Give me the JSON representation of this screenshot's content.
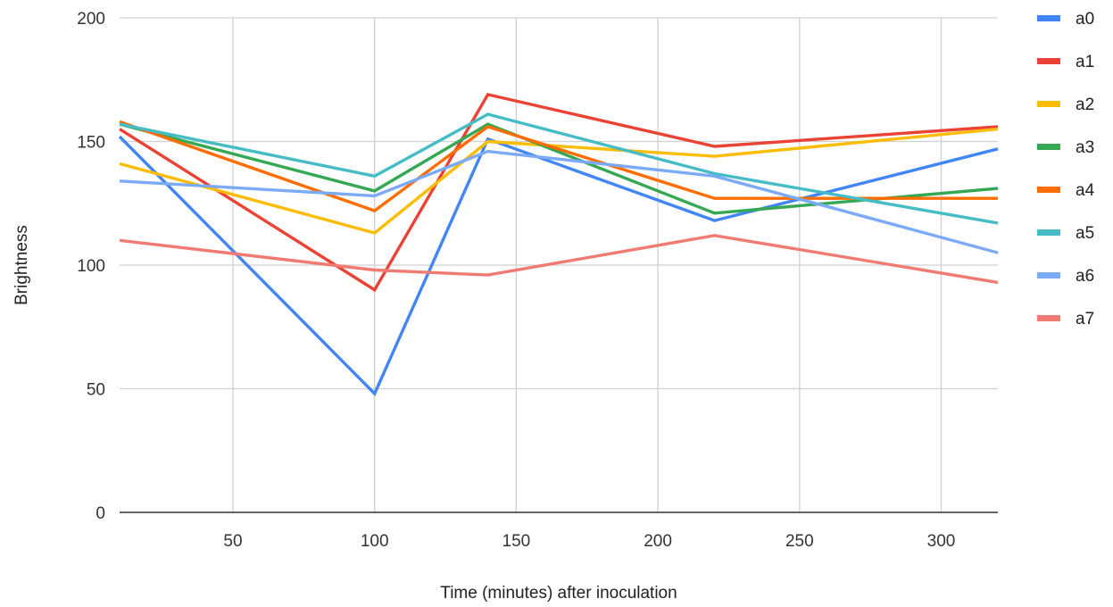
{
  "chart_data": {
    "type": "line",
    "title": "",
    "xlabel": "Time (minutes) after inoculation",
    "ylabel": "Brightness",
    "xlim": [
      10,
      320
    ],
    "ylim": [
      0,
      200
    ],
    "x_ticks": [
      50,
      100,
      150,
      200,
      250,
      300
    ],
    "y_ticks": [
      0,
      50,
      100,
      150,
      200
    ],
    "grid": true,
    "legend_position": "right",
    "x": [
      10,
      100,
      140,
      220,
      320
    ],
    "series": [
      {
        "name": "a0",
        "color": "#4285f4",
        "values": [
          152,
          48,
          151,
          118,
          147
        ]
      },
      {
        "name": "a1",
        "color": "#ea4335",
        "values": [
          155,
          90,
          169,
          148,
          156
        ]
      },
      {
        "name": "a2",
        "color": "#fbbc04",
        "values": [
          141,
          113,
          150,
          144,
          155
        ]
      },
      {
        "name": "a3",
        "color": "#34a853",
        "values": [
          157,
          130,
          157,
          121,
          131
        ]
      },
      {
        "name": "a4",
        "color": "#ff6d01",
        "values": [
          158,
          122,
          156,
          127,
          127
        ]
      },
      {
        "name": "a5",
        "color": "#46bdc6",
        "values": [
          157,
          136,
          161,
          137,
          117
        ]
      },
      {
        "name": "a6",
        "color": "#7baaf7",
        "values": [
          134,
          128,
          146,
          136,
          105
        ]
      },
      {
        "name": "a7",
        "color": "#f07b72",
        "values": [
          110,
          98,
          96,
          112,
          93
        ]
      }
    ]
  }
}
